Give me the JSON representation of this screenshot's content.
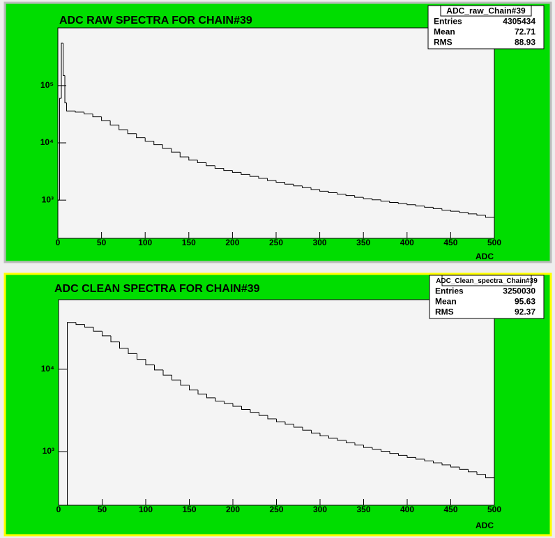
{
  "chart_data": [
    {
      "type": "histogram",
      "title": "ADC RAW SPECTRA FOR CHAIN#39",
      "x_label": "ADC",
      "bins": [
        0,
        2,
        4,
        6,
        8,
        10,
        20,
        30,
        40,
        50,
        60,
        70,
        80,
        90,
        100,
        110,
        120,
        130,
        140,
        150,
        160,
        170,
        180,
        190,
        200,
        210,
        220,
        230,
        240,
        250,
        260,
        270,
        280,
        290,
        300,
        310,
        320,
        330,
        340,
        350,
        360,
        370,
        380,
        390,
        400,
        410,
        420,
        430,
        440,
        450,
        460,
        470,
        480,
        490,
        500
      ],
      "values": [
        1000,
        60000,
        550000,
        150000,
        50000,
        36000,
        34500,
        32000,
        28500,
        24500,
        20500,
        17000,
        14500,
        12300,
        10700,
        9300,
        8000,
        6900,
        5700,
        5000,
        4500,
        4000,
        3600,
        3300,
        3050,
        2800,
        2600,
        2400,
        2200,
        2050,
        1900,
        1770,
        1650,
        1530,
        1430,
        1350,
        1270,
        1200,
        1120,
        1060,
        1010,
        960,
        910,
        870,
        830,
        790,
        750,
        710,
        670,
        640,
        610,
        575,
        545,
        500
      ],
      "color": "#000000",
      "log_y": true,
      "xlim": [
        0,
        500
      ],
      "xticks": [
        0,
        50,
        100,
        150,
        200,
        250,
        300,
        350,
        400,
        450,
        500
      ],
      "ylim": [
        215,
        1020000
      ],
      "yticks": [
        {
          "value": 1000,
          "label": "10³"
        },
        {
          "value": 10000,
          "label": "10⁴"
        },
        {
          "value": 100000,
          "label": "10⁵"
        }
      ],
      "stats": {
        "title": "ADC_raw_Chain#39",
        "rows": [
          {
            "label": "Entries",
            "value": 4305434
          },
          {
            "label": "Mean",
            "value": 72.71
          },
          {
            "label": "RMS",
            "value": 88.93
          }
        ]
      }
    },
    {
      "type": "histogram",
      "title": "ADC CLEAN SPECTRA FOR CHAIN#39",
      "x_label": "ADC",
      "bins": [
        10,
        20,
        30,
        40,
        50,
        60,
        70,
        80,
        90,
        100,
        110,
        120,
        130,
        140,
        150,
        160,
        170,
        180,
        190,
        200,
        210,
        220,
        230,
        240,
        250,
        260,
        270,
        280,
        290,
        300,
        310,
        320,
        330,
        340,
        350,
        360,
        370,
        380,
        390,
        400,
        410,
        420,
        430,
        440,
        450,
        460,
        470,
        480,
        490,
        500
      ],
      "values": [
        37000,
        35000,
        32500,
        29000,
        25500,
        21500,
        18000,
        15500,
        13200,
        11300,
        9800,
        8500,
        7400,
        6400,
        5600,
        5000,
        4500,
        4100,
        3850,
        3550,
        3250,
        3000,
        2750,
        2500,
        2300,
        2150,
        1980,
        1820,
        1680,
        1550,
        1450,
        1370,
        1280,
        1200,
        1120,
        1070,
        1010,
        950,
        900,
        850,
        810,
        770,
        730,
        690,
        650,
        610,
        570,
        530,
        480
      ],
      "color": "#000000",
      "log_y": true,
      "xlim": [
        0,
        500
      ],
      "xticks": [
        0,
        50,
        100,
        150,
        200,
        250,
        300,
        350,
        400,
        450,
        500
      ],
      "ylim": [
        223,
        70000
      ],
      "yticks": [
        {
          "value": 1000,
          "label": "10³"
        },
        {
          "value": 10000,
          "label": "10⁴"
        }
      ],
      "stats": {
        "title": "ADC_Clean_spectra_Chain#39",
        "rows": [
          {
            "label": "Entries",
            "value": 3250030
          },
          {
            "label": "Mean",
            "value": 95.63
          },
          {
            "label": "RMS",
            "value": 92.37
          }
        ]
      }
    }
  ]
}
